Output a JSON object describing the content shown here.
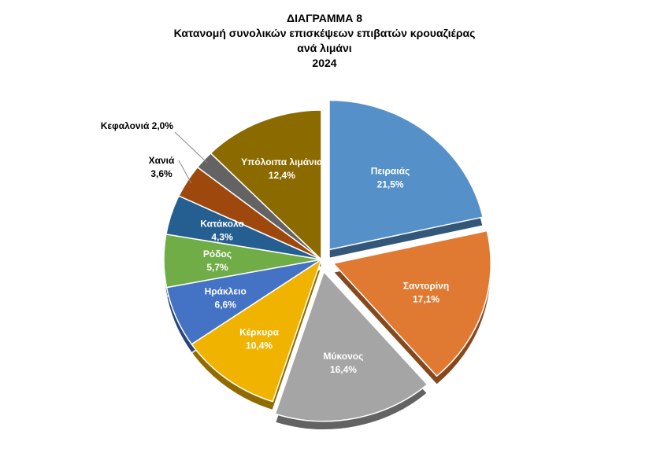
{
  "chart_data": {
    "type": "pie",
    "title_lines": [
      "ΔΙΑΓΡΑΜΜΑ 8",
      "Κατανομή συνολικών επισκέψεων επιβατών κρουαζιέρας",
      "ανά λιμάνι",
      "2024"
    ],
    "slices": [
      {
        "name": "Πειραιάς",
        "value_label": "21,5%",
        "value": 21.5,
        "color": "#5591C8",
        "label_color": "#ffffff",
        "exploded": true
      },
      {
        "name": "Σαντορίνη",
        "value_label": "17,1%",
        "value": 17.1,
        "color": "#E07A33",
        "label_color": "#ffffff",
        "exploded": true
      },
      {
        "name": "Μύκονος",
        "value_label": "16,4%",
        "value": 16.4,
        "color": "#A5A5A5",
        "label_color": "#ffffff",
        "exploded": true
      },
      {
        "name": "Κέρκυρα",
        "value_label": "10,4%",
        "value": 10.4,
        "color": "#F0B400",
        "label_color": "#ffffff",
        "exploded": false
      },
      {
        "name": "Ηράκλειο",
        "value_label": "6,6%",
        "value": 6.6,
        "color": "#4472C4",
        "label_color": "#ffffff",
        "exploded": false
      },
      {
        "name": "Ρόδος",
        "value_label": "5,7%",
        "value": 5.7,
        "color": "#70AD47",
        "label_color": "#ffffff",
        "exploded": false
      },
      {
        "name": "Κατάκολο",
        "value_label": "4,3%",
        "value": 4.3,
        "color": "#255E91",
        "label_color": "#ffffff",
        "exploded": false
      },
      {
        "name": "Χανιά",
        "value_label": "3,6%",
        "value": 3.6,
        "color": "#9E480E",
        "label_color": "#000000",
        "exploded": false,
        "outside": true
      },
      {
        "name": "Κεφαλονιά",
        "value_label": "2,0%",
        "value": 2.0,
        "color": "#636363",
        "label_color": "#000000",
        "exploded": false,
        "outside": true,
        "single_line": true
      },
      {
        "name": "Υπόλοιπα λιμάνια",
        "value_label": "12,4%",
        "value": 12.4,
        "color": "#8B6A00",
        "label_color": "#ffffff",
        "exploded": false
      }
    ]
  }
}
